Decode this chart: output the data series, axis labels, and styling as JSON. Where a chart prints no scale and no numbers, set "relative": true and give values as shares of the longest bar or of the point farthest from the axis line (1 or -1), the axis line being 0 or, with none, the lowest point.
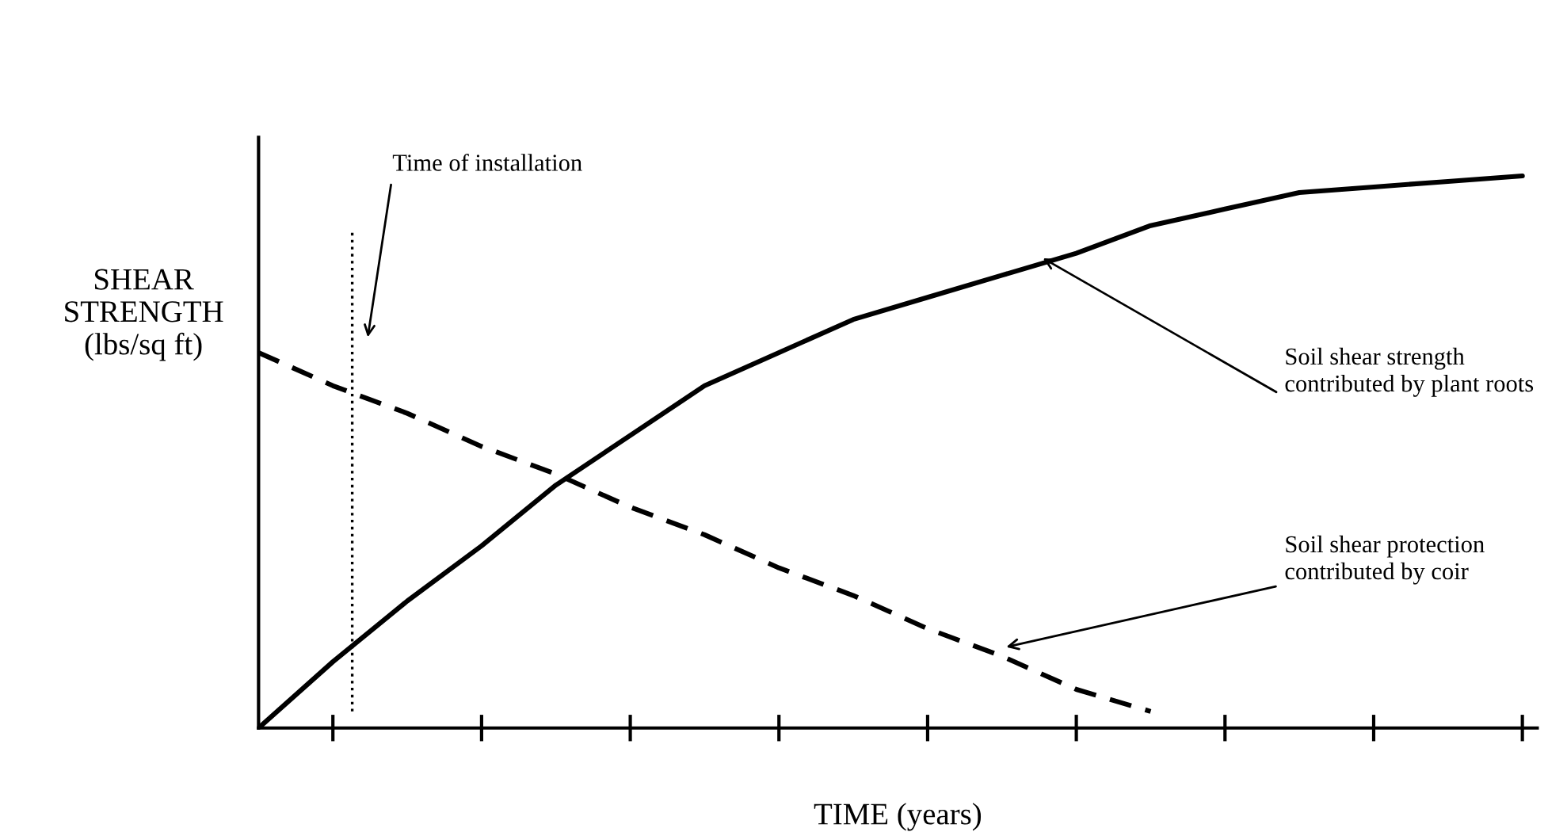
{
  "chart_data": {
    "type": "line",
    "relative": true,
    "xlabel": "TIME (years)",
    "ylabel": "SHEAR\nSTRENGTH\n(lbs/sq ft)",
    "tick_labels": false,
    "grid": false,
    "marker": "none",
    "categories": [
      null,
      null,
      null,
      null,
      null,
      null,
      null,
      null,
      null,
      null,
      null,
      null,
      null,
      null,
      null,
      null,
      null,
      null
    ],
    "series": [
      {
        "color": "#000000",
        "line_style": "solid",
        "values": [
          0,
          0.12,
          0.23,
          0.33,
          0.44,
          0.53,
          0.62,
          0.68,
          0.74,
          0.78,
          0.82,
          0.86,
          0.91,
          0.94,
          0.97,
          0.98,
          0.99,
          1.0
        ]
      },
      {
        "color": "#000000",
        "line_style": "dashed",
        "values": [
          0.68,
          0.62,
          0.57,
          0.51,
          0.46,
          0.4,
          0.35,
          0.29,
          0.24,
          0.18,
          0.13,
          0.07,
          0.03,
          null,
          null,
          null,
          null,
          null
        ]
      }
    ],
    "annotations": [
      "Time of installation",
      "Soil shear strength\ncontributed by plant roots",
      "Soil shear protection\ncontributed by coir"
    ]
  }
}
